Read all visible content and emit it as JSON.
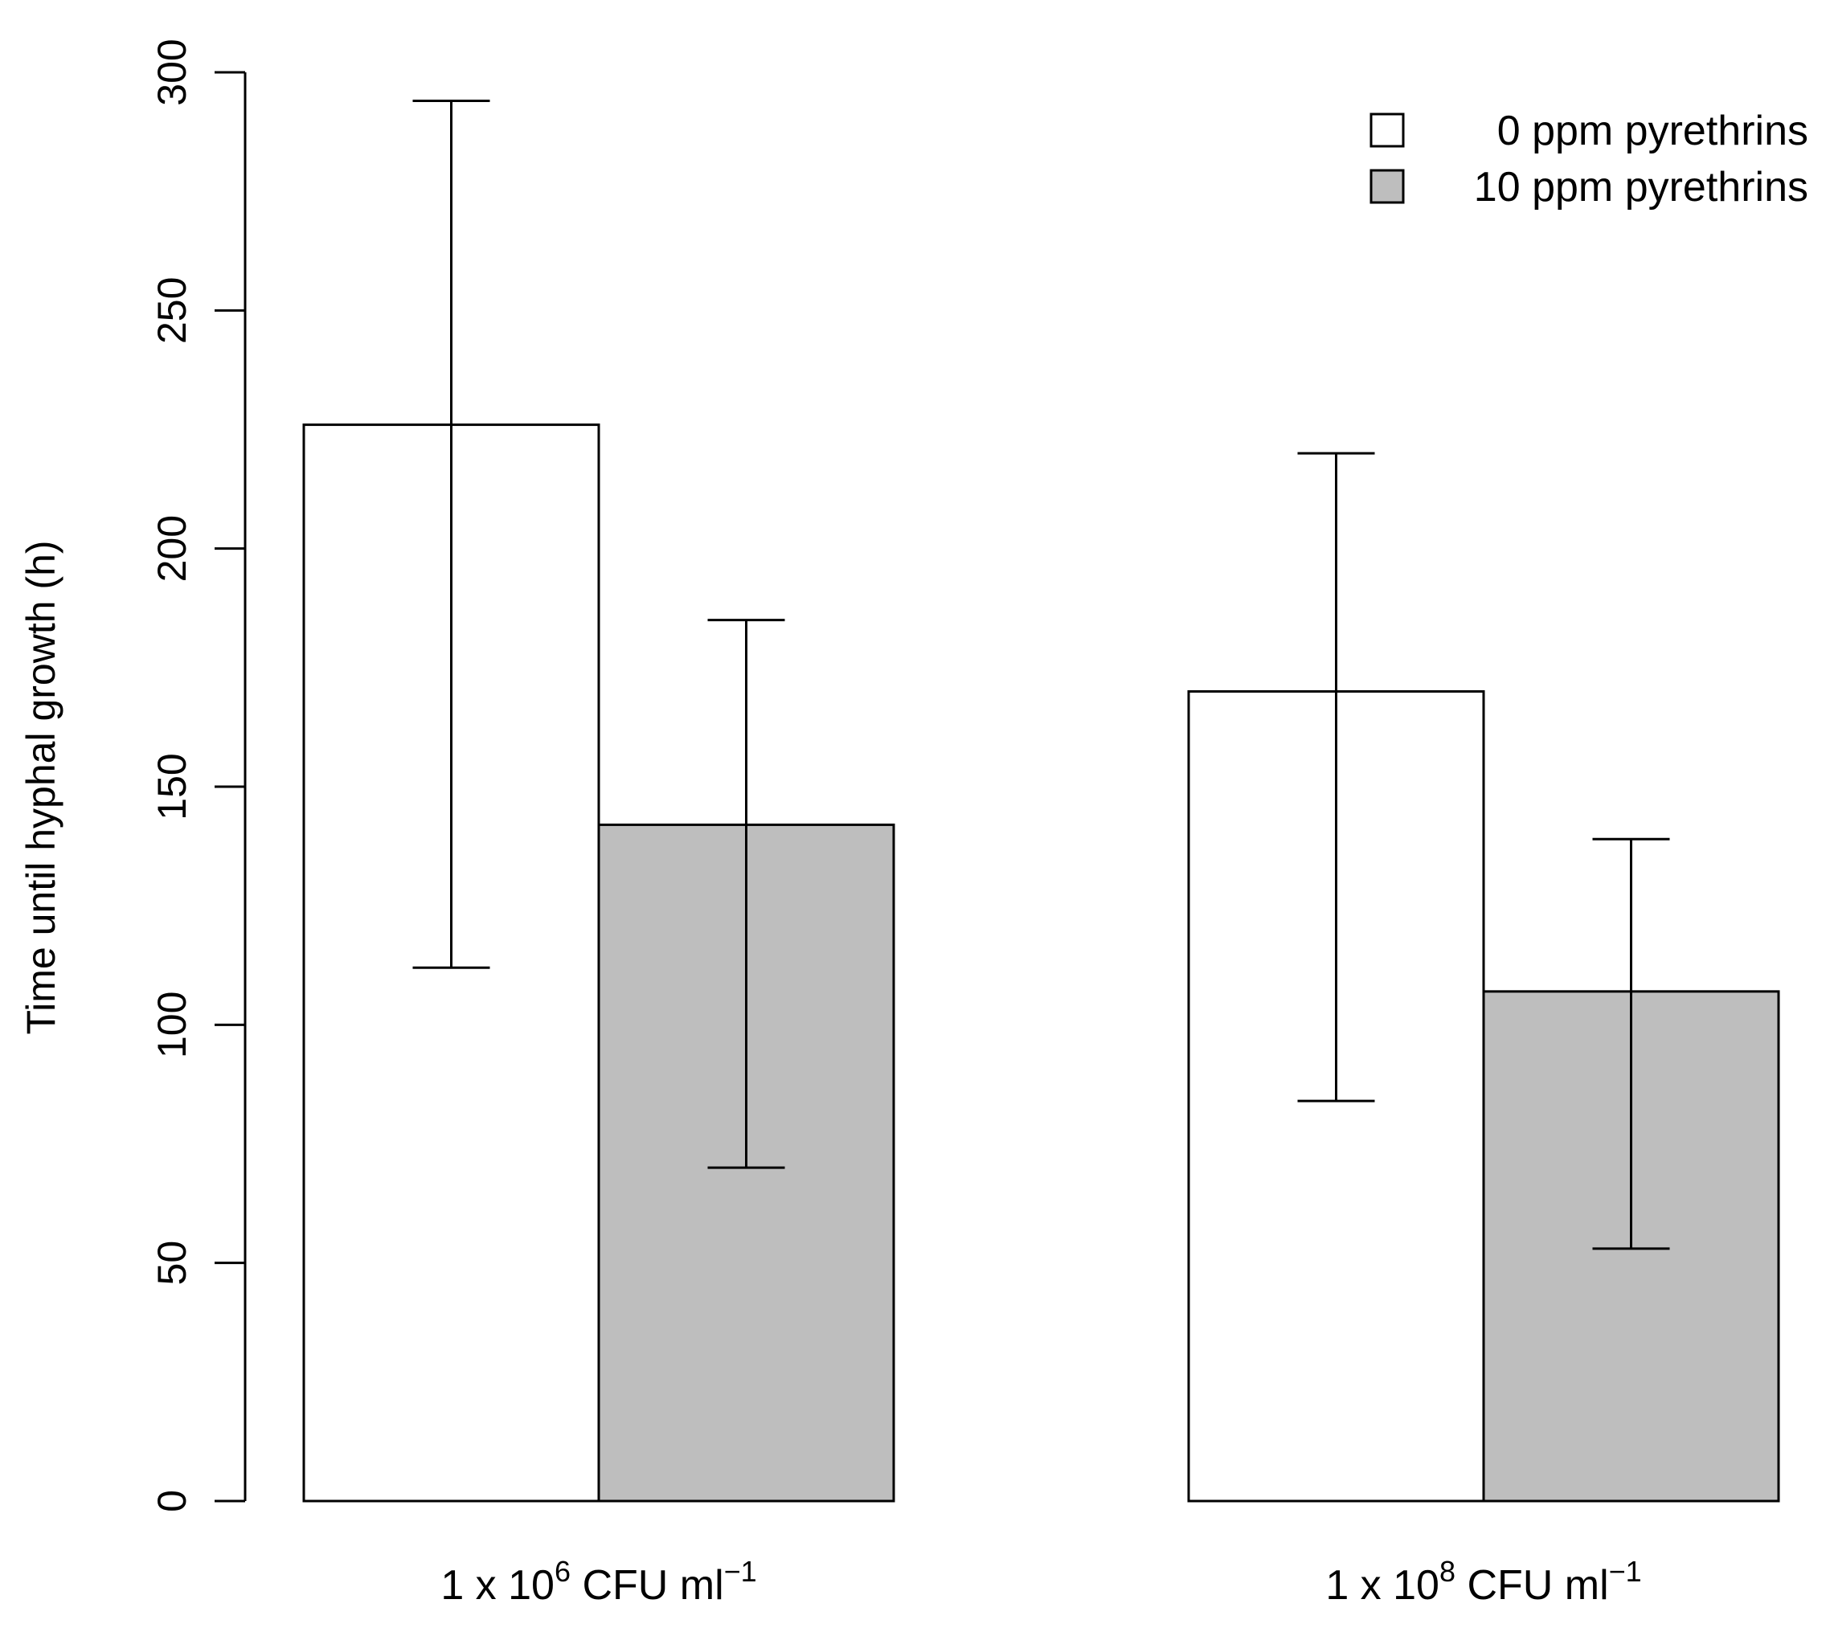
{
  "chart_data": {
    "type": "bar",
    "title": "",
    "ylabel": "Time until hyphal growth (h)",
    "xlabel": "",
    "ylim": [
      0,
      300
    ],
    "yticks": [
      0,
      50,
      100,
      150,
      200,
      250,
      300
    ],
    "grid": false,
    "legend_position": "top-right",
    "categories": [
      {
        "prefix": "1 x 10",
        "exponent": "6",
        "suffix": " CFU ml",
        "unit_exponent": "−1"
      },
      {
        "prefix": "1 x 10",
        "exponent": "8",
        "suffix": " CFU ml",
        "unit_exponent": "−1"
      }
    ],
    "series": [
      {
        "name": "0 ppm pyrethrins",
        "color": "#ffffff",
        "values": [
          226,
          170
        ],
        "error_low": [
          112,
          84
        ],
        "error_high": [
          294,
          220
        ]
      },
      {
        "name": "10 ppm pyrethrins",
        "color": "#bebebe",
        "values": [
          142,
          107
        ],
        "error_low": [
          70,
          53
        ],
        "error_high": [
          185,
          139
        ]
      }
    ]
  }
}
